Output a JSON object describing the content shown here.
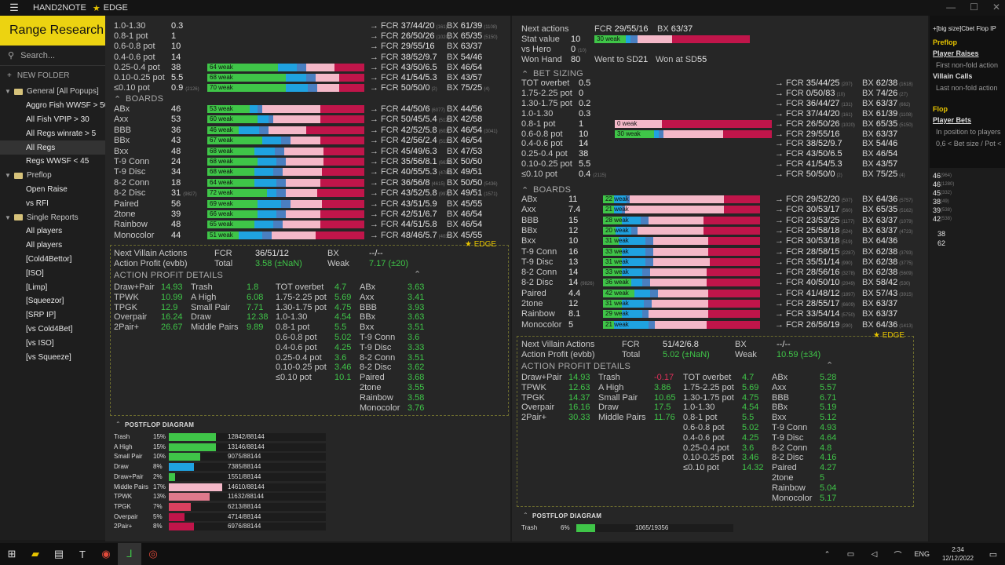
{
  "title": {
    "app": "HAND2NOTE",
    "edge": "EDGE",
    "section": "Range Research"
  },
  "sidebar": {
    "search_placeholder": "Search...",
    "new_folder": "NEW FOLDER",
    "items": [
      {
        "t": "General [All Popups]",
        "k": "f"
      },
      {
        "t": "Aggro Fish WWSF > 50",
        "k": "c"
      },
      {
        "t": "All Fish VPIP > 30",
        "k": "c"
      },
      {
        "t": "All Regs winrate > 5",
        "k": "c"
      },
      {
        "t": "All Regs",
        "k": "c"
      },
      {
        "t": "Regs WWSF < 45",
        "k": "c"
      },
      {
        "t": "Preflop",
        "k": "f"
      },
      {
        "t": "Open Raise",
        "k": "c"
      },
      {
        "t": "vs RFI",
        "k": "c"
      },
      {
        "t": "Single Reports",
        "k": "f"
      },
      {
        "t": "All players",
        "k": "c"
      },
      {
        "t": "All players",
        "k": "c"
      },
      {
        "t": "[Cold4Bettor]",
        "k": "c"
      },
      {
        "t": "[ISO]",
        "k": "c"
      },
      {
        "t": "[Limp]",
        "k": "c"
      },
      {
        "t": "[Squeezor]",
        "k": "c"
      },
      {
        "t": "[SRP IP]",
        "k": "c"
      },
      {
        "t": "[vs Cold4Bet]",
        "k": "c"
      },
      {
        "t": "[vs ISO]",
        "k": "c"
      },
      {
        "t": "[vs Squeeze]",
        "k": "c"
      }
    ]
  },
  "left": {
    "sizing": [
      {
        "l": "1.0-1.30",
        "v": "0.3",
        "fcr": "37/44/20",
        "fs": "(161)",
        "bx": "61/39",
        "bs": "(1108)"
      },
      {
        "l": "0.8-1 pot",
        "v": "1",
        "fcr": "26/50/26",
        "fs": "(1020)",
        "bx": "65/35",
        "bs": "(5150)"
      },
      {
        "l": "0.6-0.8 pot",
        "v": "10",
        "fcr": "29/55/16",
        "fs": "",
        "bx": "63/37",
        "bs": ""
      },
      {
        "l": "0.4-0.6 pot",
        "v": "14",
        "fcr": "38/52/9.7",
        "fs": "",
        "bx": "54/46",
        "bs": ""
      },
      {
        "l": "0.25-0.4 pot",
        "v": "38",
        "fcr": "43/50/6.5",
        "fs": "",
        "bx": "46/54",
        "bs": "",
        "bar": "64 weak",
        "c": [
          0.45,
          0.12,
          0.06,
          0.18,
          0.19
        ]
      },
      {
        "l": "0.10-0.25 pot",
        "v": "5.5",
        "fcr": "41/54/5.3",
        "fs": "",
        "bx": "43/57",
        "bs": "",
        "bar": "68 weak",
        "c": [
          0.5,
          0.13,
          0.06,
          0.15,
          0.16
        ]
      },
      {
        "l": "≤0.10 pot",
        "v": "0.9",
        "vs": "(2126)",
        "fcr": "50/50/0",
        "fs": "(2)",
        "bx": "75/25",
        "bs": "(4)",
        "bar": "70 weak",
        "c": [
          0.5,
          0.14,
          0.06,
          0.14,
          0.16
        ]
      }
    ],
    "boards_title": "BOARDS",
    "boards": [
      {
        "l": "ABx",
        "v": "46",
        "fcr": "44/50/6",
        "fs": "(6077)",
        "bx": "44/56",
        "bar": "53 weak",
        "c": [
          0.27,
          0.05,
          0.03,
          0.37,
          0.28
        ]
      },
      {
        "l": "Axx",
        "v": "53",
        "fcr": "50/45/5.4",
        "fs": "(5125)",
        "bx": "42/58",
        "bar": "60 weak",
        "c": [
          0.32,
          0.07,
          0.03,
          0.3,
          0.28
        ]
      },
      {
        "l": "BBB",
        "v": "36",
        "fcr": "42/52/5.8",
        "fs": "(603)",
        "bx": "46/54",
        "bs": "(3041)",
        "bar": "46 weak",
        "c": [
          0.2,
          0.13,
          0.06,
          0.24,
          0.37
        ]
      },
      {
        "l": "BBx",
        "v": "43",
        "fcr": "42/56/2.4",
        "fs": "(5133)",
        "bx": "46/54",
        "bar": "67 weak",
        "c": [
          0.35,
          0.12,
          0.06,
          0.19,
          0.28
        ]
      },
      {
        "l": "Bxx",
        "v": "48",
        "fcr": "45/49/6.3",
        "fs": "",
        "bx": "47/53",
        "bar": "68 weak",
        "c": [
          0.3,
          0.13,
          0.06,
          0.25,
          0.26
        ]
      },
      {
        "l": "T-9 Conn",
        "v": "24",
        "fcr": "35/56/8.1",
        "fs": "(6624)",
        "bx": "50/50",
        "bar": "68 weak",
        "c": [
          0.32,
          0.12,
          0.06,
          0.24,
          0.26
        ]
      },
      {
        "l": "T-9 Disc",
        "v": "34",
        "fcr": "40/55/5.3",
        "fs": "(4786)",
        "bx": "49/51",
        "bar": "68 weak",
        "c": [
          0.3,
          0.12,
          0.06,
          0.25,
          0.27
        ]
      },
      {
        "l": "8-2 Conn",
        "v": "18",
        "fcr": "36/56/8",
        "fs": "(4615)",
        "bx": "50/50",
        "bs": "(5436)",
        "bar": "64 weak",
        "c": [
          0.3,
          0.14,
          0.06,
          0.22,
          0.28
        ]
      },
      {
        "l": "8-2 Disc",
        "v": "31",
        "vs": "(9827)",
        "fcr": "43/52/5.8",
        "fs": "(997)",
        "bx": "49/51",
        "bs": "(1571)",
        "bar": "72 weak",
        "c": [
          0.38,
          0.06,
          0.06,
          0.2,
          0.3
        ]
      },
      {
        "l": "Paired",
        "v": "56",
        "fcr": "43/51/5.9",
        "fs": "",
        "bx": "45/55",
        "bar": "69 weak",
        "c": [
          0.32,
          0.15,
          0.06,
          0.2,
          0.27
        ]
      },
      {
        "l": "2tone",
        "v": "39",
        "fcr": "42/51/6.7",
        "fs": "",
        "bx": "46/54",
        "bar": "66 weak",
        "c": [
          0.32,
          0.12,
          0.06,
          0.22,
          0.28
        ]
      },
      {
        "l": "Rainbow",
        "v": "48",
        "fcr": "44/51/5.8",
        "fs": "",
        "bx": "46/54",
        "bar": "65 weak",
        "c": [
          0.3,
          0.12,
          0.06,
          0.24,
          0.28
        ]
      },
      {
        "l": "Monocolor",
        "v": "44",
        "fcr": "48/46/5.7",
        "fs": "(4035)",
        "bx": "45/55",
        "bar": "51 weak",
        "c": [
          0.2,
          0.15,
          0.06,
          0.28,
          0.31
        ]
      }
    ],
    "nva": {
      "label": "Next Villain Actions",
      "fcr_l": "FCR",
      "fcr": "36/51/12",
      "bx_l": "BX",
      "bx": "--/--",
      "ap": "Action Profit (evbb)",
      "total_l": "Total",
      "total": "3.58 (±NaN)",
      "weak_l": "Weak",
      "weak": "7.17 (±20)"
    },
    "apd_title": "ACTION PROFIT DETAILS",
    "apd": [
      [
        [
          "Draw+Pair",
          "14.93"
        ],
        [
          "TPWK",
          "10.99"
        ],
        [
          "TPGK",
          "12.9"
        ],
        [
          "Overpair",
          "16.24"
        ],
        [
          "2Pair+",
          "26.67"
        ]
      ],
      [
        [
          "Trash",
          "1.8"
        ],
        [
          "A High",
          "6.08"
        ],
        [
          "Small Pair",
          "7.71"
        ],
        [
          "Draw",
          "12.38"
        ],
        [
          "Middle Pairs",
          "9.89"
        ]
      ],
      [
        [
          "TOT overbet",
          "4.7"
        ],
        [
          "1.75-2.25 pot",
          "5.69"
        ],
        [
          "1.30-1.75 pot",
          "4.75"
        ],
        [
          "1.0-1.30",
          "4.54"
        ],
        [
          "0.8-1 pot",
          "5.5"
        ],
        [
          "0.6-0.8 pot",
          "5.02"
        ],
        [
          "0.4-0.6 pot",
          "4.25"
        ],
        [
          "0.25-0.4 pot",
          "3.6"
        ],
        [
          "0.10-0.25 pot",
          "3.46"
        ],
        [
          "≤0.10 pot",
          "10.1"
        ]
      ],
      [
        [
          "ABx",
          "3.63"
        ],
        [
          "Axx",
          "3.41"
        ],
        [
          "BBB",
          "3.93"
        ],
        [
          "BBx",
          "3.63"
        ],
        [
          "Bxx",
          "3.51"
        ],
        [
          "T-9 Conn",
          "3.6"
        ],
        [
          "T-9 Disc",
          "3.33"
        ],
        [
          "8-2 Conn",
          "3.51"
        ],
        [
          "8-2 Disc",
          "3.62"
        ],
        [
          "Paired",
          "3.68"
        ],
        [
          "2tone",
          "3.55"
        ],
        [
          "Rainbow",
          "3.58"
        ],
        [
          "Monocolor",
          "3.76"
        ]
      ]
    ],
    "pd_title": "POSTFLOP DIAGRAM",
    "pd": [
      {
        "l": "Trash",
        "p": "15%",
        "n": "12842/88144",
        "f": 0.15,
        "col": "#3fc548"
      },
      {
        "l": "A High",
        "p": "15%",
        "n": "13146/88144",
        "f": 0.15,
        "col": "#3fc548"
      },
      {
        "l": "Small Pair",
        "p": "10%",
        "n": "9075/88144",
        "f": 0.1,
        "col": "#3fc548"
      },
      {
        "l": "Draw",
        "p": "8%",
        "n": "7385/88144",
        "f": 0.08,
        "col": "#1fa2e0"
      },
      {
        "l": "Draw+Pair",
        "p": "2%",
        "n": "1551/88144",
        "f": 0.02,
        "col": "#3fc548"
      },
      {
        "l": "Middle Pairs",
        "p": "17%",
        "n": "14610/88144",
        "f": 0.17,
        "col": "#f4b8c8"
      },
      {
        "l": "TPWK",
        "p": "13%",
        "n": "11632/88144",
        "f": 0.13,
        "col": "#e07a8c"
      },
      {
        "l": "TPGK",
        "p": "7%",
        "n": "6213/88144",
        "f": 0.07,
        "col": "#d9405f"
      },
      {
        "l": "Overpair",
        "p": "5%",
        "n": "4714/88144",
        "f": 0.05,
        "col": "#c0154a"
      },
      {
        "l": "2Pair+",
        "p": "8%",
        "n": "6976/88144",
        "f": 0.08,
        "col": "#c0154a"
      }
    ]
  },
  "right": {
    "top": {
      "na": "Next actions",
      "fcr": "29/55/16",
      "bx": "63/37",
      "sv": "Stat value",
      "svv": "10",
      "bar": "30 weak",
      "vh": "vs Hero",
      "vhv": "0",
      "vhs": "(10)",
      "wh": "Won Hand",
      "whv": "80",
      "wsd": "Went to SD",
      "wsdv": "21",
      "was": "Won at SD",
      "wasv": "55"
    },
    "bs_title": "BET SIZING",
    "sizing": [
      {
        "l": "TOT overbet",
        "v": "0.5",
        "fcr": "35/44/25",
        "fs": "(207)",
        "bx": "62/38",
        "bs": "(1618)"
      },
      {
        "l": "1.75-2.25 pot",
        "v": "0",
        "fcr": "0/50/83",
        "fs": "(10)",
        "bx": "74/26",
        "bs": "(27)"
      },
      {
        "l": "1.30-1.75 pot",
        "v": "0.2",
        "fcr": "36/44/27",
        "fs": "(131)",
        "bx": "63/37",
        "bs": "(662)"
      },
      {
        "l": "1.0-1.30",
        "v": "0.3",
        "fcr": "37/44/20",
        "fs": "(161)",
        "bx": "61/39",
        "bs": "(1108)"
      },
      {
        "l": "0.8-1 pot",
        "v": "1",
        "fcr": "26/50/26",
        "fs": "(1020)",
        "bx": "65/35",
        "bs": "(5150)",
        "bar": "0 weak",
        "c": [
          0,
          0,
          0,
          0.3,
          0.7
        ]
      },
      {
        "l": "0.6-0.8 pot",
        "v": "10",
        "fcr": "29/55/16",
        "fs": "",
        "bx": "63/37",
        "bs": "",
        "bar": "30 weak",
        "c": [
          0.25,
          0.03,
          0.03,
          0.38,
          0.31
        ]
      },
      {
        "l": "0.4-0.6 pot",
        "v": "14",
        "fcr": "38/52/9.7",
        "fs": "",
        "bx": "54/46"
      },
      {
        "l": "0.25-0.4 pot",
        "v": "38",
        "fcr": "43/50/6.5",
        "fs": "",
        "bx": "46/54"
      },
      {
        "l": "0.10-0.25 pot",
        "v": "5.5",
        "fcr": "41/54/5.3",
        "fs": "",
        "bx": "43/57"
      },
      {
        "l": "≤0.10 pot",
        "v": "0.4",
        "vs": "(2115)",
        "fcr": "50/50/0",
        "fs": "(2)",
        "bx": "75/25",
        "bs": "(4)"
      }
    ],
    "boards_title": "BOARDS",
    "boards": [
      {
        "l": "ABx",
        "v": "11",
        "fcr": "29/52/20",
        "fs": "(507)",
        "bx": "64/36",
        "bs": "(5757)",
        "bar": "22 weak",
        "c": [
          0.07,
          0.08,
          0.02,
          0.6,
          0.23
        ]
      },
      {
        "l": "Axx",
        "v": "7.4",
        "fcr": "30/53/17",
        "fs": "(560)",
        "bx": "65/35",
        "bs": "(5162)",
        "bar": "21 weak",
        "c": [
          0.07,
          0.05,
          0.02,
          0.63,
          0.23
        ]
      },
      {
        "l": "BBB",
        "v": "15",
        "fcr": "23/53/25",
        "fs": "(1177)",
        "bx": "63/37",
        "bs": "(1079)",
        "bar": "28 weak",
        "c": [
          0.12,
          0.12,
          0.05,
          0.35,
          0.36
        ]
      },
      {
        "l": "BBx",
        "v": "12",
        "fcr": "25/58/18",
        "fs": "(524)",
        "bx": "63/37",
        "bs": "(4723)",
        "bar": "20 weak",
        "c": [
          0.08,
          0.1,
          0.04,
          0.42,
          0.36
        ]
      },
      {
        "l": "Bxx",
        "v": "10",
        "fcr": "30/53/18",
        "fs": "(519)",
        "bx": "64/36",
        "bar": "31 weak",
        "c": [
          0.1,
          0.17,
          0.05,
          0.35,
          0.33
        ]
      },
      {
        "l": "T-9 Conn",
        "v": "16",
        "fcr": "28/58/15",
        "fs": "(2287)",
        "bx": "62/38",
        "bs": "(3793)",
        "bar": "33 weak",
        "c": [
          0.12,
          0.15,
          0.05,
          0.35,
          0.33
        ]
      },
      {
        "l": "T-9 Disc",
        "v": "13",
        "fcr": "35/51/14",
        "fs": "(990)",
        "bx": "62/38",
        "bs": "(3775)",
        "bar": "31 weak",
        "c": [
          0.12,
          0.15,
          0.05,
          0.36,
          0.32
        ]
      },
      {
        "l": "8-2 Conn",
        "v": "14",
        "fcr": "28/56/16",
        "fs": "(3278)",
        "bx": "62/38",
        "bs": "(5609)",
        "bar": "33 weak",
        "c": [
          0.12,
          0.13,
          0.05,
          0.36,
          0.34
        ]
      },
      {
        "l": "8-2 Disc",
        "v": "14",
        "vs": "(9826)",
        "fcr": "40/50/10",
        "fs": "(2049)",
        "bx": "58/42",
        "bs": "(530)",
        "bar": "36 weak",
        "c": [
          0.18,
          0.07,
          0.05,
          0.36,
          0.34
        ]
      },
      {
        "l": "Paired",
        "v": "4.4",
        "fcr": "41/48/12",
        "fs": "(1897)",
        "bx": "57/43",
        "bs": "(3915)",
        "bar": "42 weak",
        "c": [
          0.2,
          0.1,
          0.05,
          0.32,
          0.33
        ]
      },
      {
        "l": "2tone",
        "v": "12",
        "fcr": "28/55/17",
        "fs": "(6609)",
        "bx": "63/37",
        "bar": "31 weak",
        "c": [
          0.12,
          0.14,
          0.05,
          0.36,
          0.33
        ]
      },
      {
        "l": "Rainbow",
        "v": "8.1",
        "fcr": "33/54/14",
        "fs": "(5750)",
        "bx": "63/37",
        "bar": "29 weak",
        "c": [
          0.12,
          0.13,
          0.04,
          0.38,
          0.33
        ]
      },
      {
        "l": "Monocolor",
        "v": "5",
        "fcr": "26/56/19",
        "fs": "(290)",
        "bx": "64/36",
        "bs": "(1413)",
        "bar": "21 weak",
        "c": [
          0.07,
          0.22,
          0.04,
          0.33,
          0.34
        ]
      }
    ],
    "nva": {
      "label": "Next Villain Actions",
      "fcr_l": "FCR",
      "fcr": "51/42/6.8",
      "bx_l": "BX",
      "bx": "--/--",
      "ap": "Action Profit (evbb)",
      "total_l": "Total",
      "total": "5.02 (±NaN)",
      "weak_l": "Weak",
      "weak": "10.59 (±34)"
    },
    "apd_title": "ACTION PROFIT DETAILS",
    "apd": [
      [
        [
          "Draw+Pair",
          "14.93"
        ],
        [
          "TPWK",
          "12.63"
        ],
        [
          "TPGK",
          "14.37"
        ],
        [
          "Overpair",
          "16.16"
        ],
        [
          "2Pair+",
          "30.33"
        ]
      ],
      [
        [
          "Trash",
          "-0.17"
        ],
        [
          "A High",
          "3.86"
        ],
        [
          "Small Pair",
          "10.65"
        ],
        [
          "Draw",
          "17.5"
        ],
        [
          "Middle Pairs",
          "11.76"
        ]
      ],
      [
        [
          "TOT overbet",
          "4.7"
        ],
        [
          "1.75-2.25 pot",
          "5.69"
        ],
        [
          "1.30-1.75 pot",
          "4.75"
        ],
        [
          "1.0-1.30",
          "4.54"
        ],
        [
          "0.8-1 pot",
          "5.5"
        ],
        [
          "0.6-0.8 pot",
          "5.02"
        ],
        [
          "0.4-0.6 pot",
          "4.25"
        ],
        [
          "0.25-0.4 pot",
          "3.6"
        ],
        [
          "0.10-0.25 pot",
          "3.46"
        ],
        [
          "≤0.10 pot",
          "14.32"
        ]
      ],
      [
        [
          "ABx",
          "5.28"
        ],
        [
          "Axx",
          "5.57"
        ],
        [
          "BBB",
          "6.71"
        ],
        [
          "BBx",
          "5.19"
        ],
        [
          "Bxx",
          "5.12"
        ],
        [
          "T-9 Conn",
          "4.93"
        ],
        [
          "T-9 Disc",
          "4.64"
        ],
        [
          "8-2 Conn",
          "4.8"
        ],
        [
          "8-2 Disc",
          "4.16"
        ],
        [
          "Paired",
          "4.27"
        ],
        [
          "2tone",
          "5"
        ],
        [
          "Rainbow",
          "5.04"
        ],
        [
          "Monocolor",
          "5.17"
        ]
      ]
    ],
    "pd_title": "POSTFLOP DIAGRAM",
    "pd": [
      {
        "l": "Trash",
        "p": "6%",
        "n": "1065/19356",
        "f": 0.06,
        "col": "#3fc548"
      }
    ]
  },
  "side": {
    "title": "+[big size]Cbet Flop IP",
    "h1": "Preflop",
    "u1": "Player Raises",
    "t1": "First non-fold action",
    "u2": "Villain Calls",
    "t2": "Last non-fold action",
    "h2": "Flop",
    "u3": "Player Bets",
    "t3": "In position to players",
    "t4": "0,6 < Bet size / Pot <",
    "nums": [
      "46",
      "(964)",
      "46",
      "(1280)",
      "45",
      "(332)",
      "38",
      "(49)",
      "39",
      "(538)",
      "42",
      "(538)",
      "38",
      "62"
    ]
  },
  "taskbar": {
    "lang": "ENG",
    "time": "2:34",
    "date": "12/12/2022"
  },
  "colors": {
    "green": "#3fc548",
    "blue": "#1fa2e0",
    "steel": "#4a7fc0",
    "pink": "#f4b8c8",
    "rose": "#e07a8c",
    "crimson": "#c0154a",
    "yellow": "#ecd311"
  }
}
